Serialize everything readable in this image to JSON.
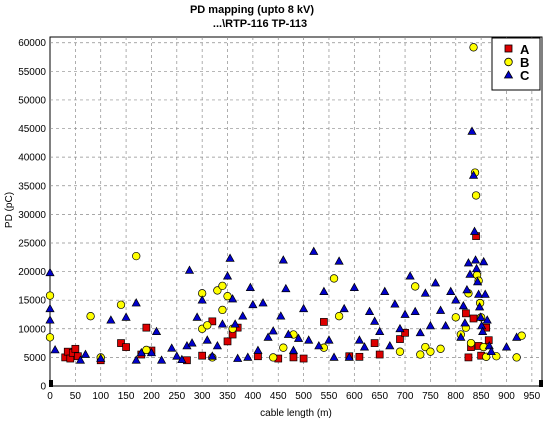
{
  "chart_data": {
    "type": "scatter",
    "title": "PD mapping (upto 8 kV)",
    "subtitle": "...\\RTP-116 TP-113",
    "xlabel": "cable length (m)",
    "ylabel": "PD (pC)",
    "xlim": [
      0,
      970
    ],
    "ylim": [
      0,
      61000
    ],
    "xticks": [
      0,
      50,
      100,
      150,
      200,
      250,
      300,
      350,
      400,
      450,
      500,
      550,
      600,
      650,
      700,
      750,
      800,
      850,
      900,
      950
    ],
    "yticks": [
      0,
      5000,
      10000,
      15000,
      20000,
      25000,
      30000,
      35000,
      40000,
      45000,
      50000,
      55000,
      60000
    ],
    "xtick_labels": [
      "0",
      "50",
      "100",
      "150",
      "200",
      "250",
      "300",
      "350",
      "400",
      "450",
      "500",
      "550",
      "600",
      "650",
      "700",
      "750",
      "800",
      "850",
      "900",
      "950"
    ],
    "ytick_labels": [
      "0",
      "5000",
      "10000",
      "15000",
      "20000",
      "25000",
      "30000",
      "35000",
      "40000",
      "45000",
      "50000",
      "55000",
      "60000"
    ],
    "grid": true,
    "legend_position": "top-right",
    "series": [
      {
        "name": "A",
        "marker": "square",
        "color": "#dd0000",
        "points": [
          [
            30,
            5000
          ],
          [
            35,
            6000
          ],
          [
            40,
            4800
          ],
          [
            45,
            5800
          ],
          [
            50,
            6500
          ],
          [
            55,
            5200
          ],
          [
            100,
            4500
          ],
          [
            140,
            7500
          ],
          [
            150,
            6800
          ],
          [
            180,
            5500
          ],
          [
            190,
            10200
          ],
          [
            200,
            6200
          ],
          [
            270,
            4500
          ],
          [
            300,
            5300
          ],
          [
            320,
            11300
          ],
          [
            350,
            7800
          ],
          [
            360,
            9000
          ],
          [
            370,
            10200
          ],
          [
            410,
            5200
          ],
          [
            450,
            4800
          ],
          [
            480,
            5000
          ],
          [
            500,
            4800
          ],
          [
            540,
            11200
          ],
          [
            590,
            5200
          ],
          [
            610,
            5100
          ],
          [
            640,
            7500
          ],
          [
            650,
            5500
          ],
          [
            690,
            8200
          ],
          [
            700,
            9300
          ],
          [
            820,
            12700
          ],
          [
            825,
            5000
          ],
          [
            830,
            6800
          ],
          [
            835,
            11800
          ],
          [
            840,
            26200
          ],
          [
            845,
            7000
          ],
          [
            850,
            5300
          ],
          [
            860,
            10200
          ],
          [
            865,
            8000
          ]
        ]
      },
      {
        "name": "B",
        "marker": "circle",
        "color": "#ffff00",
        "points": [
          [
            0,
            15800
          ],
          [
            0,
            8500
          ],
          [
            80,
            12200
          ],
          [
            100,
            5000
          ],
          [
            140,
            14200
          ],
          [
            170,
            22700
          ],
          [
            190,
            6300
          ],
          [
            300,
            16200
          ],
          [
            300,
            10000
          ],
          [
            310,
            10600
          ],
          [
            320,
            5000
          ],
          [
            330,
            16700
          ],
          [
            340,
            17500
          ],
          [
            340,
            13300
          ],
          [
            350,
            15700
          ],
          [
            360,
            10000
          ],
          [
            440,
            5000
          ],
          [
            460,
            6700
          ],
          [
            480,
            9000
          ],
          [
            540,
            6700
          ],
          [
            560,
            18800
          ],
          [
            570,
            12200
          ],
          [
            690,
            6000
          ],
          [
            720,
            17400
          ],
          [
            730,
            5500
          ],
          [
            740,
            6800
          ],
          [
            750,
            6000
          ],
          [
            770,
            6500
          ],
          [
            800,
            12000
          ],
          [
            810,
            9000
          ],
          [
            820,
            10200
          ],
          [
            825,
            16200
          ],
          [
            830,
            7500
          ],
          [
            835,
            59200
          ],
          [
            838,
            37300
          ],
          [
            840,
            33300
          ],
          [
            842,
            19400
          ],
          [
            845,
            18400
          ],
          [
            848,
            14500
          ],
          [
            850,
            12000
          ],
          [
            855,
            6800
          ],
          [
            860,
            5100
          ],
          [
            880,
            5200
          ],
          [
            920,
            5000
          ],
          [
            930,
            8800
          ]
        ]
      },
      {
        "name": "C",
        "marker": "triangle",
        "color": "#0000cc",
        "points": [
          [
            0,
            19800
          ],
          [
            0,
            13500
          ],
          [
            0,
            11500
          ],
          [
            10,
            6300
          ],
          [
            60,
            4500
          ],
          [
            70,
            5500
          ],
          [
            100,
            4800
          ],
          [
            120,
            11500
          ],
          [
            150,
            12000
          ],
          [
            170,
            14500
          ],
          [
            170,
            4500
          ],
          [
            180,
            5800
          ],
          [
            200,
            5800
          ],
          [
            210,
            9500
          ],
          [
            220,
            4500
          ],
          [
            240,
            6600
          ],
          [
            250,
            5200
          ],
          [
            260,
            4600
          ],
          [
            270,
            7000
          ],
          [
            275,
            20200
          ],
          [
            280,
            7500
          ],
          [
            290,
            12000
          ],
          [
            300,
            15000
          ],
          [
            310,
            8000
          ],
          [
            320,
            5200
          ],
          [
            330,
            7000
          ],
          [
            340,
            10800
          ],
          [
            350,
            19200
          ],
          [
            355,
            22300
          ],
          [
            360,
            15200
          ],
          [
            365,
            10800
          ],
          [
            370,
            4800
          ],
          [
            380,
            12200
          ],
          [
            390,
            5000
          ],
          [
            395,
            17200
          ],
          [
            400,
            14200
          ],
          [
            410,
            6200
          ],
          [
            420,
            14500
          ],
          [
            430,
            8500
          ],
          [
            440,
            9600
          ],
          [
            455,
            12200
          ],
          [
            460,
            22000
          ],
          [
            465,
            17000
          ],
          [
            470,
            9000
          ],
          [
            480,
            6200
          ],
          [
            490,
            8300
          ],
          [
            500,
            13500
          ],
          [
            510,
            8000
          ],
          [
            520,
            23500
          ],
          [
            530,
            7000
          ],
          [
            540,
            16500
          ],
          [
            550,
            8000
          ],
          [
            560,
            5000
          ],
          [
            570,
            21800
          ],
          [
            580,
            13500
          ],
          [
            590,
            5000
          ],
          [
            600,
            17200
          ],
          [
            610,
            8000
          ],
          [
            620,
            6800
          ],
          [
            630,
            13000
          ],
          [
            640,
            11300
          ],
          [
            650,
            9500
          ],
          [
            660,
            16500
          ],
          [
            670,
            7000
          ],
          [
            680,
            14300
          ],
          [
            690,
            10000
          ],
          [
            700,
            12500
          ],
          [
            710,
            19200
          ],
          [
            720,
            13000
          ],
          [
            730,
            9300
          ],
          [
            740,
            16200
          ],
          [
            750,
            10500
          ],
          [
            760,
            18000
          ],
          [
            770,
            13200
          ],
          [
            780,
            10500
          ],
          [
            790,
            16500
          ],
          [
            800,
            15000
          ],
          [
            810,
            8500
          ],
          [
            815,
            14000
          ],
          [
            818,
            11000
          ],
          [
            822,
            16800
          ],
          [
            825,
            21500
          ],
          [
            828,
            19500
          ],
          [
            832,
            44500
          ],
          [
            835,
            36800
          ],
          [
            837,
            27000
          ],
          [
            839,
            22000
          ],
          [
            841,
            20500
          ],
          [
            843,
            18200
          ],
          [
            845,
            16000
          ],
          [
            847,
            13800
          ],
          [
            849,
            12000
          ],
          [
            851,
            10500
          ],
          [
            853,
            9500
          ],
          [
            855,
            21700
          ],
          [
            858,
            16000
          ],
          [
            862,
            11500
          ],
          [
            866,
            7000
          ],
          [
            870,
            6000
          ],
          [
            900,
            6800
          ],
          [
            920,
            8500
          ]
        ]
      }
    ]
  }
}
